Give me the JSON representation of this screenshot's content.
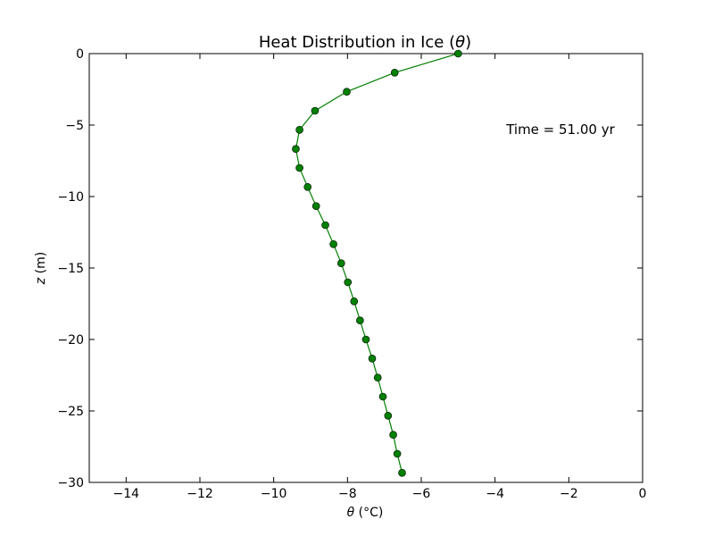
{
  "chart_data": {
    "type": "line",
    "title_text": "Heat Distribution in Ice (",
    "title_symbol": "θ",
    "title_close": ")",
    "xlabel_symbol": "θ",
    "xlabel_unit": " (°C)",
    "ylabel_symbol": "z",
    "ylabel_unit": " (m)",
    "xlim": [
      -15,
      0
    ],
    "ylim": [
      -30,
      0
    ],
    "x_ticks": [
      -14,
      -12,
      -10,
      -8,
      -6,
      -4,
      -2,
      0
    ],
    "y_ticks": [
      0,
      -5,
      -10,
      -15,
      -20,
      -25,
      -30
    ],
    "annotation": "Time = 51.00 yr",
    "grid": false,
    "series": [
      {
        "color": "#008000",
        "marker": "circle",
        "points": [
          {
            "x": -5.0,
            "y": 0.0
          },
          {
            "x": -6.72,
            "y": -1.33
          },
          {
            "x": -8.02,
            "y": -2.67
          },
          {
            "x": -8.88,
            "y": -4.0
          },
          {
            "x": -9.3,
            "y": -5.33
          },
          {
            "x": -9.4,
            "y": -6.67
          },
          {
            "x": -9.3,
            "y": -8.0
          },
          {
            "x": -9.08,
            "y": -9.33
          },
          {
            "x": -8.85,
            "y": -10.67
          },
          {
            "x": -8.6,
            "y": -12.0
          },
          {
            "x": -8.38,
            "y": -13.33
          },
          {
            "x": -8.17,
            "y": -14.67
          },
          {
            "x": -7.99,
            "y": -16.0
          },
          {
            "x": -7.82,
            "y": -17.33
          },
          {
            "x": -7.66,
            "y": -18.67
          },
          {
            "x": -7.5,
            "y": -20.0
          },
          {
            "x": -7.33,
            "y": -21.33
          },
          {
            "x": -7.18,
            "y": -22.67
          },
          {
            "x": -7.04,
            "y": -24.0
          },
          {
            "x": -6.9,
            "y": -25.33
          },
          {
            "x": -6.76,
            "y": -26.67
          },
          {
            "x": -6.65,
            "y": -28.0
          },
          {
            "x": -6.52,
            "y": -29.33
          }
        ]
      }
    ]
  }
}
